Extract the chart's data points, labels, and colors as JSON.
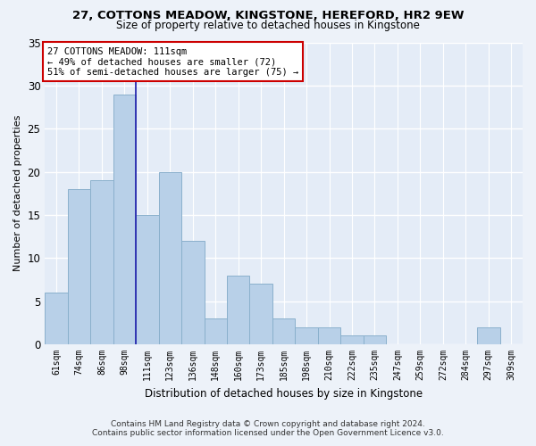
{
  "title": "27, COTTONS MEADOW, KINGSTONE, HEREFORD, HR2 9EW",
  "subtitle": "Size of property relative to detached houses in Kingstone",
  "xlabel": "Distribution of detached houses by size in Kingstone",
  "ylabel": "Number of detached properties",
  "categories": [
    "61sqm",
    "74sqm",
    "86sqm",
    "98sqm",
    "111sqm",
    "123sqm",
    "136sqm",
    "148sqm",
    "160sqm",
    "173sqm",
    "185sqm",
    "198sqm",
    "210sqm",
    "222sqm",
    "235sqm",
    "247sqm",
    "259sqm",
    "272sqm",
    "284sqm",
    "297sqm",
    "309sqm"
  ],
  "values": [
    6,
    18,
    19,
    29,
    15,
    20,
    12,
    3,
    8,
    7,
    3,
    2,
    2,
    1,
    1,
    0,
    0,
    0,
    0,
    2,
    0
  ],
  "bar_color": "#b8d0e8",
  "bar_edge_color": "#8ab0cc",
  "highlight_idx": 4,
  "highlight_line_color": "#1a1aaa",
  "ylim": [
    0,
    35
  ],
  "yticks": [
    0,
    5,
    10,
    15,
    20,
    25,
    30,
    35
  ],
  "annotation_text": "27 COTTONS MEADOW: 111sqm\n← 49% of detached houses are smaller (72)\n51% of semi-detached houses are larger (75) →",
  "annotation_box_color": "#ffffff",
  "annotation_box_edge_color": "#cc0000",
  "footer_line1": "Contains HM Land Registry data © Crown copyright and database right 2024.",
  "footer_line2": "Contains public sector information licensed under the Open Government Licence v3.0.",
  "background_color": "#edf2f9",
  "plot_bg_color": "#e4ecf7"
}
